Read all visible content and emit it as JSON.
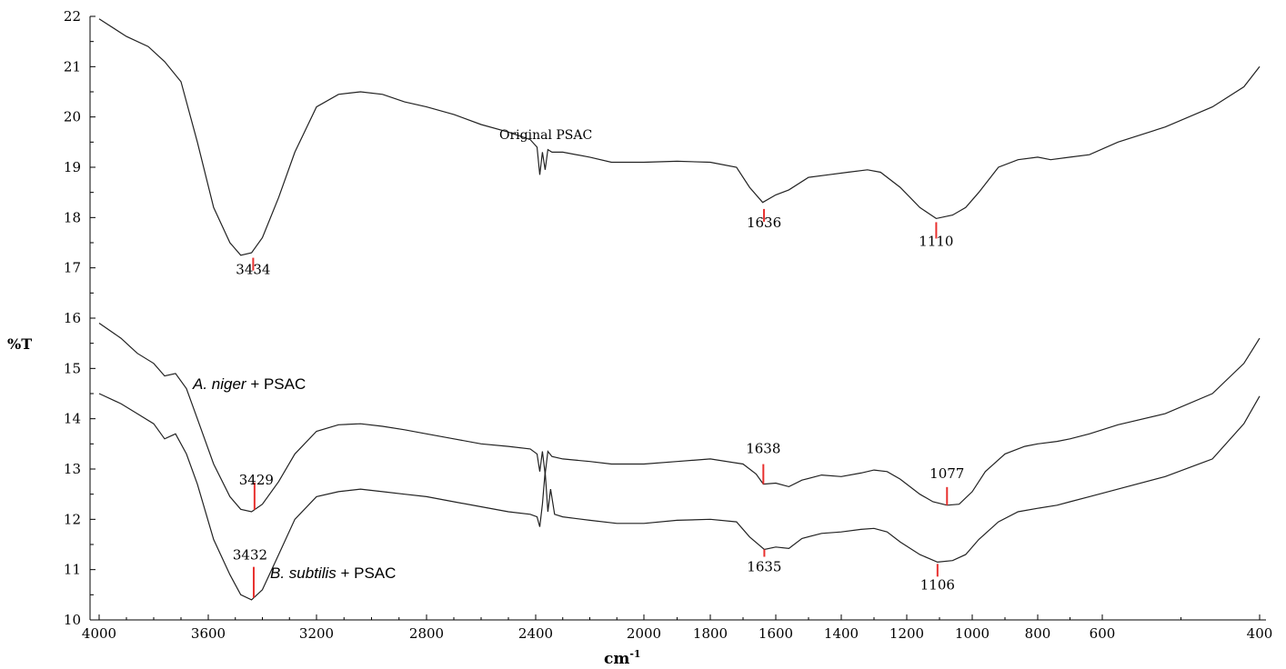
{
  "chart_data": {
    "type": "line",
    "xlabel_base": "cm",
    "xlabel_sup": "-1",
    "ylabel": "%T",
    "xlim": [
      4000,
      400
    ],
    "ylim": [
      10,
      22
    ],
    "x_ticks": [
      "4000",
      "3600",
      "3200",
      "2800",
      "2400",
      "2000",
      "1800",
      "1600",
      "1400",
      "1200",
      "1000",
      "800",
      "600",
      "400"
    ],
    "y_ticks": [
      "10",
      "11",
      "12",
      "13",
      "14",
      "15",
      "16",
      "17",
      "18",
      "19",
      "20",
      "21",
      "22"
    ],
    "grid": false,
    "series": [
      {
        "name": "Original PSAC",
        "label_style": "serif",
        "points": [
          [
            4000,
            21.95
          ],
          [
            3900,
            21.6
          ],
          [
            3820,
            21.4
          ],
          [
            3760,
            21.1
          ],
          [
            3700,
            20.7
          ],
          [
            3640,
            19.5
          ],
          [
            3580,
            18.2
          ],
          [
            3520,
            17.5
          ],
          [
            3480,
            17.25
          ],
          [
            3440,
            17.3
          ],
          [
            3400,
            17.6
          ],
          [
            3340,
            18.4
          ],
          [
            3280,
            19.3
          ],
          [
            3200,
            20.2
          ],
          [
            3120,
            20.45
          ],
          [
            3040,
            20.5
          ],
          [
            2960,
            20.45
          ],
          [
            2880,
            20.3
          ],
          [
            2800,
            20.2
          ],
          [
            2700,
            20.05
          ],
          [
            2600,
            19.85
          ],
          [
            2500,
            19.7
          ],
          [
            2420,
            19.55
          ],
          [
            2395,
            19.4
          ],
          [
            2385,
            18.85
          ],
          [
            2375,
            19.3
          ],
          [
            2365,
            18.95
          ],
          [
            2355,
            19.35
          ],
          [
            2340,
            19.3
          ],
          [
            2300,
            19.3
          ],
          [
            2200,
            19.2
          ],
          [
            2120,
            19.1
          ],
          [
            2000,
            19.1
          ],
          [
            1900,
            19.12
          ],
          [
            1800,
            19.1
          ],
          [
            1720,
            19.0
          ],
          [
            1680,
            18.6
          ],
          [
            1640,
            18.3
          ],
          [
            1600,
            18.45
          ],
          [
            1560,
            18.55
          ],
          [
            1500,
            18.8
          ],
          [
            1440,
            18.85
          ],
          [
            1380,
            18.9
          ],
          [
            1320,
            18.95
          ],
          [
            1280,
            18.9
          ],
          [
            1220,
            18.6
          ],
          [
            1160,
            18.2
          ],
          [
            1110,
            17.98
          ],
          [
            1060,
            18.05
          ],
          [
            1020,
            18.2
          ],
          [
            980,
            18.5
          ],
          [
            920,
            19.0
          ],
          [
            860,
            19.15
          ],
          [
            800,
            19.2
          ],
          [
            760,
            19.15
          ],
          [
            700,
            19.2
          ],
          [
            640,
            19.25
          ],
          [
            580,
            19.5
          ],
          [
            520,
            19.8
          ],
          [
            460,
            20.2
          ],
          [
            420,
            20.6
          ],
          [
            400,
            21.0
          ]
        ],
        "peaks": [
          {
            "x": 3434,
            "label": "3434"
          },
          {
            "x": 1636,
            "label": "1636"
          },
          {
            "x": 1110,
            "label": "1110"
          }
        ]
      },
      {
        "name": "A. niger + PSAC",
        "label_style": "sans",
        "name_italic": "A. niger",
        "name_rest": " + PSAC",
        "points": [
          [
            4000,
            15.9
          ],
          [
            3920,
            15.6
          ],
          [
            3860,
            15.3
          ],
          [
            3800,
            15.1
          ],
          [
            3760,
            14.85
          ],
          [
            3720,
            14.9
          ],
          [
            3680,
            14.6
          ],
          [
            3640,
            14.0
          ],
          [
            3580,
            13.1
          ],
          [
            3520,
            12.45
          ],
          [
            3480,
            12.2
          ],
          [
            3440,
            12.15
          ],
          [
            3400,
            12.3
          ],
          [
            3340,
            12.75
          ],
          [
            3280,
            13.3
          ],
          [
            3200,
            13.75
          ],
          [
            3120,
            13.88
          ],
          [
            3040,
            13.9
          ],
          [
            2960,
            13.85
          ],
          [
            2880,
            13.78
          ],
          [
            2800,
            13.7
          ],
          [
            2700,
            13.6
          ],
          [
            2600,
            13.5
          ],
          [
            2500,
            13.45
          ],
          [
            2420,
            13.4
          ],
          [
            2395,
            13.3
          ],
          [
            2385,
            12.95
          ],
          [
            2375,
            13.35
          ],
          [
            2365,
            12.9
          ],
          [
            2355,
            13.35
          ],
          [
            2340,
            13.25
          ],
          [
            2300,
            13.2
          ],
          [
            2200,
            13.15
          ],
          [
            2120,
            13.1
          ],
          [
            2000,
            13.1
          ],
          [
            1900,
            13.15
          ],
          [
            1800,
            13.2
          ],
          [
            1700,
            13.1
          ],
          [
            1660,
            12.9
          ],
          [
            1638,
            12.7
          ],
          [
            1600,
            12.72
          ],
          [
            1560,
            12.65
          ],
          [
            1520,
            12.78
          ],
          [
            1460,
            12.88
          ],
          [
            1400,
            12.85
          ],
          [
            1340,
            12.92
          ],
          [
            1300,
            12.98
          ],
          [
            1260,
            12.95
          ],
          [
            1220,
            12.8
          ],
          [
            1160,
            12.5
          ],
          [
            1120,
            12.35
          ],
          [
            1077,
            12.28
          ],
          [
            1040,
            12.3
          ],
          [
            1000,
            12.55
          ],
          [
            960,
            12.95
          ],
          [
            900,
            13.3
          ],
          [
            840,
            13.45
          ],
          [
            800,
            13.5
          ],
          [
            740,
            13.55
          ],
          [
            700,
            13.6
          ],
          [
            640,
            13.7
          ],
          [
            580,
            13.88
          ],
          [
            520,
            14.1
          ],
          [
            460,
            14.5
          ],
          [
            420,
            15.1
          ],
          [
            400,
            15.6
          ]
        ],
        "peaks": [
          {
            "x": 3429,
            "label": "3429"
          },
          {
            "x": 1638,
            "label": "1638"
          },
          {
            "x": 1077,
            "label": "1077"
          }
        ]
      },
      {
        "name": "B. subtilis + PSAC",
        "label_style": "sans",
        "name_italic": "B. subtilis",
        "name_rest": " + PSAC",
        "points": [
          [
            4000,
            14.5
          ],
          [
            3920,
            14.3
          ],
          [
            3860,
            14.1
          ],
          [
            3800,
            13.9
          ],
          [
            3760,
            13.6
          ],
          [
            3720,
            13.7
          ],
          [
            3680,
            13.3
          ],
          [
            3640,
            12.7
          ],
          [
            3580,
            11.6
          ],
          [
            3520,
            10.9
          ],
          [
            3480,
            10.5
          ],
          [
            3440,
            10.4
          ],
          [
            3400,
            10.6
          ],
          [
            3340,
            11.3
          ],
          [
            3280,
            12.0
          ],
          [
            3200,
            12.45
          ],
          [
            3120,
            12.55
          ],
          [
            3040,
            12.6
          ],
          [
            2960,
            12.55
          ],
          [
            2880,
            12.5
          ],
          [
            2800,
            12.45
          ],
          [
            2700,
            12.35
          ],
          [
            2600,
            12.25
          ],
          [
            2500,
            12.15
          ],
          [
            2420,
            12.1
          ],
          [
            2395,
            12.05
          ],
          [
            2385,
            11.85
          ],
          [
            2375,
            12.3
          ],
          [
            2365,
            12.95
          ],
          [
            2355,
            12.15
          ],
          [
            2345,
            12.6
          ],
          [
            2330,
            12.1
          ],
          [
            2300,
            12.05
          ],
          [
            2200,
            11.98
          ],
          [
            2100,
            11.92
          ],
          [
            2000,
            11.92
          ],
          [
            1900,
            11.98
          ],
          [
            1800,
            12.0
          ],
          [
            1720,
            11.95
          ],
          [
            1680,
            11.65
          ],
          [
            1635,
            11.4
          ],
          [
            1600,
            11.45
          ],
          [
            1560,
            11.42
          ],
          [
            1520,
            11.62
          ],
          [
            1460,
            11.72
          ],
          [
            1400,
            11.75
          ],
          [
            1340,
            11.8
          ],
          [
            1300,
            11.82
          ],
          [
            1260,
            11.75
          ],
          [
            1220,
            11.55
          ],
          [
            1160,
            11.3
          ],
          [
            1106,
            11.15
          ],
          [
            1060,
            11.18
          ],
          [
            1020,
            11.3
          ],
          [
            980,
            11.6
          ],
          [
            920,
            11.95
          ],
          [
            860,
            12.15
          ],
          [
            800,
            12.22
          ],
          [
            740,
            12.28
          ],
          [
            700,
            12.35
          ],
          [
            640,
            12.45
          ],
          [
            580,
            12.6
          ],
          [
            520,
            12.85
          ],
          [
            460,
            13.2
          ],
          [
            420,
            13.9
          ],
          [
            400,
            14.45
          ]
        ],
        "peaks": [
          {
            "x": 3432,
            "label": "3432"
          },
          {
            "x": 1635,
            "label": "1635"
          },
          {
            "x": 1106,
            "label": "1106"
          }
        ]
      }
    ]
  }
}
